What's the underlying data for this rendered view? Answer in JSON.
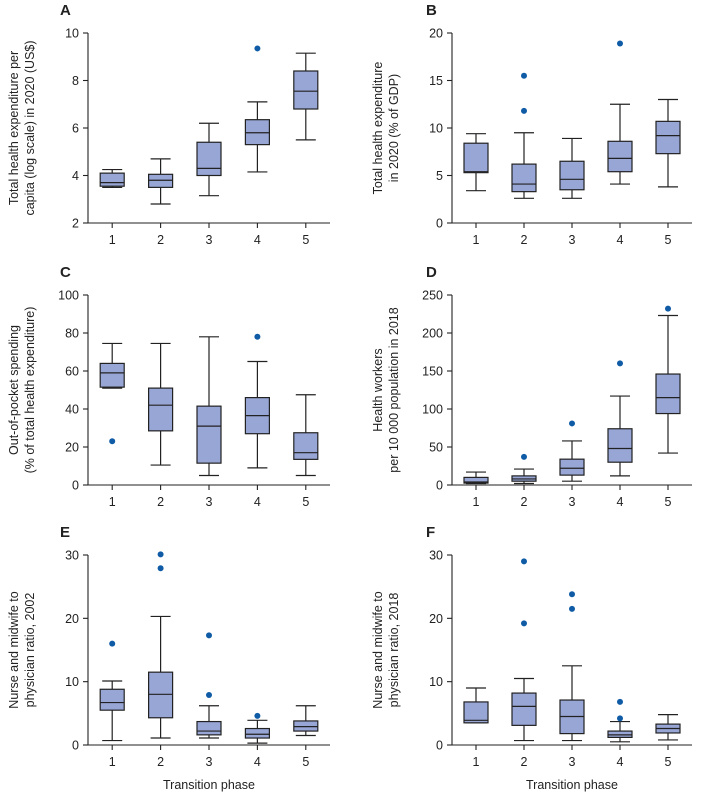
{
  "figure": {
    "shared_xlabel": "Transition phase"
  },
  "chart_data": [
    {
      "panel": "A",
      "type": "box",
      "ylabel_lines": [
        "Total health expenditure per",
        "capita (log scale) in 2020 (US$)"
      ],
      "ylim": [
        2,
        10
      ],
      "yticks": [
        2,
        4,
        6,
        8,
        10
      ],
      "xlabel": "",
      "categories": [
        "1",
        "2",
        "3",
        "4",
        "5"
      ],
      "boxes": [
        {
          "x": "1",
          "whisker_low": 3.5,
          "q1": 3.55,
          "median": 3.7,
          "q3": 4.1,
          "whisker_high": 4.25,
          "outliers": []
        },
        {
          "x": "2",
          "whisker_low": 2.8,
          "q1": 3.5,
          "median": 3.8,
          "q3": 4.05,
          "whisker_high": 4.7,
          "outliers": []
        },
        {
          "x": "3",
          "whisker_low": 3.15,
          "q1": 4.0,
          "median": 4.3,
          "q3": 5.4,
          "whisker_high": 6.2,
          "outliers": []
        },
        {
          "x": "4",
          "whisker_low": 4.15,
          "q1": 5.3,
          "median": 5.8,
          "q3": 6.35,
          "whisker_high": 7.1,
          "outliers": [
            9.35
          ]
        },
        {
          "x": "5",
          "whisker_low": 5.5,
          "q1": 6.8,
          "median": 7.55,
          "q3": 8.4,
          "whisker_high": 9.15,
          "outliers": []
        }
      ]
    },
    {
      "panel": "B",
      "type": "box",
      "ylabel_lines": [
        "Total health expenditure",
        "in 2020 (% of GDP)"
      ],
      "ylim": [
        0,
        20
      ],
      "yticks": [
        0,
        5,
        10,
        15,
        20
      ],
      "xlabel": "",
      "categories": [
        "1",
        "2",
        "3",
        "4",
        "5"
      ],
      "boxes": [
        {
          "x": "1",
          "whisker_low": 3.4,
          "q1": 5.3,
          "median": 5.4,
          "q3": 8.4,
          "whisker_high": 9.4,
          "outliers": []
        },
        {
          "x": "2",
          "whisker_low": 2.6,
          "q1": 3.3,
          "median": 4.1,
          "q3": 6.2,
          "whisker_high": 9.5,
          "outliers": [
            11.8,
            15.5
          ]
        },
        {
          "x": "3",
          "whisker_low": 2.6,
          "q1": 3.5,
          "median": 4.6,
          "q3": 6.5,
          "whisker_high": 8.9,
          "outliers": []
        },
        {
          "x": "4",
          "whisker_low": 4.1,
          "q1": 5.4,
          "median": 6.8,
          "q3": 8.6,
          "whisker_high": 12.5,
          "outliers": [
            18.9
          ]
        },
        {
          "x": "5",
          "whisker_low": 3.8,
          "q1": 7.3,
          "median": 9.2,
          "q3": 10.7,
          "whisker_high": 13.0,
          "outliers": []
        }
      ]
    },
    {
      "panel": "C",
      "type": "box",
      "ylabel_lines": [
        "Out-of-pocket spending",
        "(% of total health expenditure)"
      ],
      "ylim": [
        0,
        100
      ],
      "yticks": [
        0,
        20,
        40,
        60,
        80,
        100
      ],
      "xlabel": "",
      "categories": [
        "1",
        "2",
        "3",
        "4",
        "5"
      ],
      "boxes": [
        {
          "x": "1",
          "whisker_low": 51,
          "q1": 51.5,
          "median": 59,
          "q3": 64,
          "whisker_high": 74.5,
          "outliers": [
            23
          ]
        },
        {
          "x": "2",
          "whisker_low": 10.5,
          "q1": 28.5,
          "median": 42,
          "q3": 51,
          "whisker_high": 74.5,
          "outliers": []
        },
        {
          "x": "3",
          "whisker_low": 5,
          "q1": 11.5,
          "median": 31,
          "q3": 41.5,
          "whisker_high": 78,
          "outliers": []
        },
        {
          "x": "4",
          "whisker_low": 9,
          "q1": 27,
          "median": 36.5,
          "q3": 46,
          "whisker_high": 65,
          "outliers": [
            78
          ]
        },
        {
          "x": "5",
          "whisker_low": 5,
          "q1": 13.5,
          "median": 17,
          "q3": 27.5,
          "whisker_high": 47.5,
          "outliers": []
        }
      ]
    },
    {
      "panel": "D",
      "type": "box",
      "ylabel_lines": [
        "Health workers",
        "per 10 000 population in 2018"
      ],
      "ylim": [
        0,
        250
      ],
      "yticks": [
        0,
        50,
        100,
        150,
        200,
        250
      ],
      "xlabel": "",
      "categories": [
        "1",
        "2",
        "3",
        "4",
        "5"
      ],
      "boxes": [
        {
          "x": "1",
          "whisker_low": 2,
          "q1": 2.5,
          "median": 4,
          "q3": 10,
          "whisker_high": 17,
          "outliers": []
        },
        {
          "x": "2",
          "whisker_low": 2,
          "q1": 5,
          "median": 8,
          "q3": 12,
          "whisker_high": 21,
          "outliers": [
            37
          ]
        },
        {
          "x": "3",
          "whisker_low": 5,
          "q1": 13,
          "median": 22,
          "q3": 34,
          "whisker_high": 58,
          "outliers": [
            81
          ]
        },
        {
          "x": "4",
          "whisker_low": 12,
          "q1": 30,
          "median": 48,
          "q3": 74,
          "whisker_high": 117,
          "outliers": [
            160
          ]
        },
        {
          "x": "5",
          "whisker_low": 42,
          "q1": 94,
          "median": 115,
          "q3": 146,
          "whisker_high": 223,
          "outliers": [
            232
          ]
        }
      ]
    },
    {
      "panel": "E",
      "type": "box",
      "ylabel_lines": [
        "Nurse and midwife to",
        "physician ratio, 2002"
      ],
      "ylim": [
        0,
        30
      ],
      "yticks": [
        0,
        10,
        20,
        30
      ],
      "xlabel": "Transition phase",
      "categories": [
        "1",
        "2",
        "3",
        "4",
        "5"
      ],
      "boxes": [
        {
          "x": "1",
          "whisker_low": 0.7,
          "q1": 5.5,
          "median": 6.7,
          "q3": 8.8,
          "whisker_high": 10.1,
          "outliers": [
            16
          ]
        },
        {
          "x": "2",
          "whisker_low": 1.1,
          "q1": 4.3,
          "median": 8.0,
          "q3": 11.5,
          "whisker_high": 20.3,
          "outliers": [
            27.9,
            30.1
          ]
        },
        {
          "x": "3",
          "whisker_low": 1.1,
          "q1": 1.6,
          "median": 2.2,
          "q3": 3.7,
          "whisker_high": 6.2,
          "outliers": [
            7.9,
            17.3
          ]
        },
        {
          "x": "4",
          "whisker_low": 0.3,
          "q1": 1.1,
          "median": 1.7,
          "q3": 2.6,
          "whisker_high": 3.9,
          "outliers": [
            4.6
          ]
        },
        {
          "x": "5",
          "whisker_low": 1.5,
          "q1": 2.2,
          "median": 2.9,
          "q3": 3.8,
          "whisker_high": 6.2,
          "outliers": []
        }
      ]
    },
    {
      "panel": "F",
      "type": "box",
      "ylabel_lines": [
        "Nurse and midwife to",
        "physician ratio, 2018"
      ],
      "ylim": [
        0,
        30
      ],
      "yticks": [
        0,
        10,
        20,
        30
      ],
      "xlabel": "Transition phase",
      "categories": [
        "1",
        "2",
        "3",
        "4",
        "5"
      ],
      "boxes": [
        {
          "x": "1",
          "whisker_low": 3.5,
          "q1": 3.5,
          "median": 3.9,
          "q3": 6.8,
          "whisker_high": 9.0,
          "outliers": []
        },
        {
          "x": "2",
          "whisker_low": 0.7,
          "q1": 3.1,
          "median": 6.1,
          "q3": 8.2,
          "whisker_high": 10.5,
          "outliers": [
            19.2,
            29.0
          ]
        },
        {
          "x": "3",
          "whisker_low": 0.7,
          "q1": 1.8,
          "median": 4.5,
          "q3": 7.1,
          "whisker_high": 12.5,
          "outliers": [
            21.5,
            23.8
          ]
        },
        {
          "x": "4",
          "whisker_low": 0.5,
          "q1": 1.2,
          "median": 1.6,
          "q3": 2.2,
          "whisker_high": 3.7,
          "outliers": [
            4.2,
            6.8
          ]
        },
        {
          "x": "5",
          "whisker_low": 0.8,
          "q1": 1.9,
          "median": 2.6,
          "q3": 3.3,
          "whisker_high": 4.8,
          "outliers": []
        }
      ]
    }
  ]
}
